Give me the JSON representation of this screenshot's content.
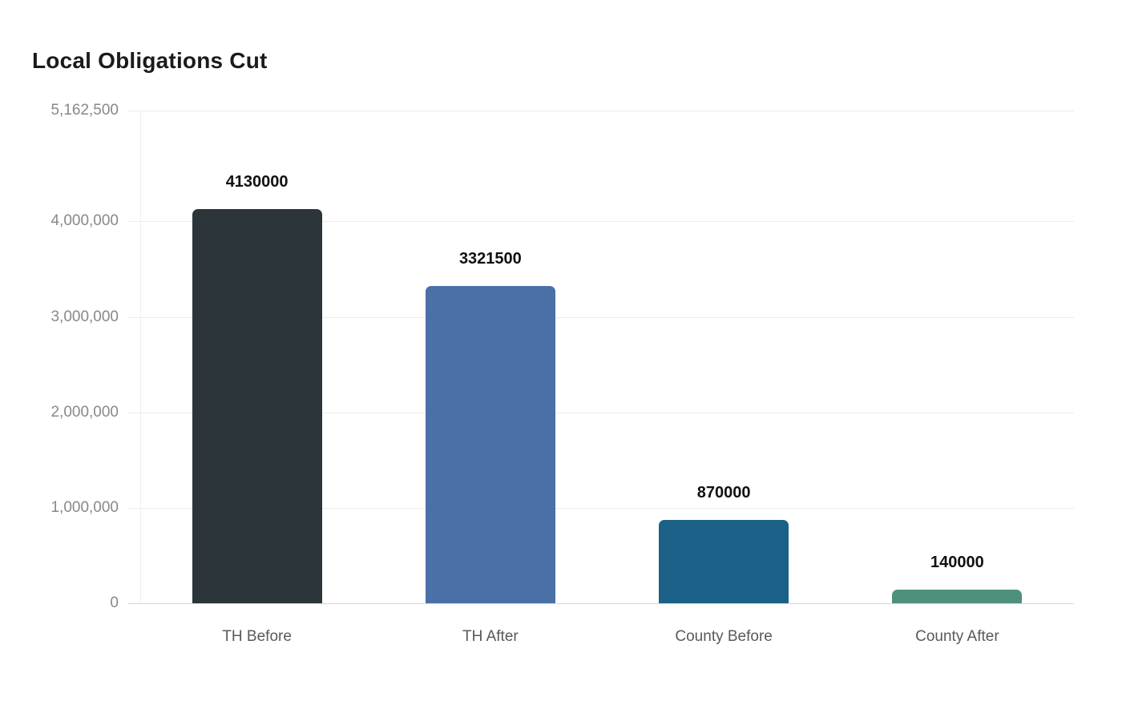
{
  "chart_data": {
    "type": "bar",
    "title": "Local Obligations Cut",
    "categories": [
      "TH Before",
      "TH After",
      "County Before",
      "County After"
    ],
    "values": [
      4130000,
      3321500,
      870000,
      140000
    ],
    "value_labels": [
      "4130000",
      "3321500",
      "870000",
      "140000"
    ],
    "bar_colors": [
      "#2c3539",
      "#4a70a7",
      "#1b6086",
      "#4e8f7d"
    ],
    "xlabel": "",
    "ylabel": "",
    "ylim": [
      0,
      5162500
    ],
    "y_ticks": [
      {
        "value": 0,
        "label": "0"
      },
      {
        "value": 1000000,
        "label": "1,000,000"
      },
      {
        "value": 2000000,
        "label": "2,000,000"
      },
      {
        "value": 3000000,
        "label": "3,000,000"
      },
      {
        "value": 4000000,
        "label": "4,000,000"
      },
      {
        "value": 5162500,
        "label": "5,162,500"
      }
    ],
    "grid": true,
    "legend": false,
    "style_colors": {
      "title_text": "#1b1b1b",
      "value_label_text": "#111111",
      "y_tick_text": "#888888",
      "x_tick_text": "#595959",
      "gridline": "#ececec",
      "zero_line": "#d8d8d8",
      "axis_line": "#e0e0e0",
      "background": "#ffffff"
    }
  }
}
